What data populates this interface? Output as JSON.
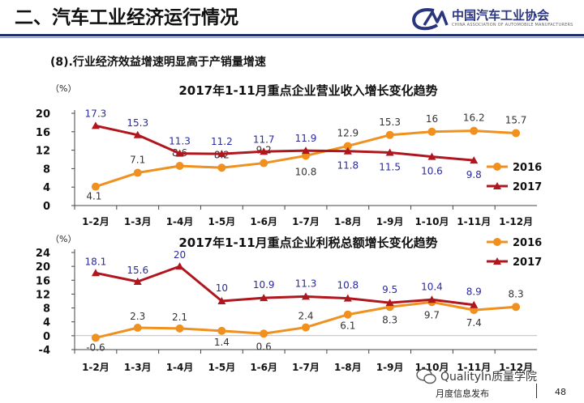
{
  "header": {
    "title": "二、汽车工业经济运行情况",
    "org_name": "中国汽车工业协会",
    "org_name_en": "CHINA ASSOCIATION OF AUTOMOBILE MANUFACTURERS",
    "subtitle": "(8).行业经济效益增速明显高于产销量增速",
    "brand_color": "#2a3580"
  },
  "footer": {
    "label": "月度信息发布",
    "page": "48",
    "watermark": "QualityIn质量学院"
  },
  "chart_data": [
    {
      "type": "line",
      "title": "2017年1-11月重点企业营业收入增长变化趋势",
      "ylabel": "（%）",
      "ylim": [
        0,
        20
      ],
      "yticks": [
        0,
        4,
        8,
        12,
        16,
        20
      ],
      "categories": [
        "1-2月",
        "1-3月",
        "1-4月",
        "1-5月",
        "1-6月",
        "1-7月",
        "1-8月",
        "1-9月",
        "1-10月",
        "1-11月",
        "1-12月"
      ],
      "legend_position": "right",
      "series": [
        {
          "name": "2016",
          "color": "#f0901e",
          "label_color": "#333333",
          "values": [
            4.1,
            7.1,
            8.6,
            8.2,
            9.2,
            10.8,
            12.9,
            15.3,
            16,
            16.2,
            15.7
          ],
          "labels": [
            "4.1",
            "7.1",
            "8.6",
            "8.2",
            "9.2",
            "10.8",
            "12.9",
            "15.3",
            "16",
            "16.2",
            "15.7"
          ]
        },
        {
          "name": "2017",
          "color": "#b0161d",
          "label_color": "#2a2aa0",
          "values": [
            17.3,
            15.3,
            11.3,
            11.2,
            11.7,
            11.9,
            11.8,
            11.5,
            10.6,
            9.8,
            null
          ],
          "labels": [
            "17.3",
            "15.3",
            "11.3",
            "11.2",
            "11.7",
            "11.9",
            "11.8",
            "11.5",
            "10.6",
            "9.8",
            ""
          ]
        }
      ]
    },
    {
      "type": "line",
      "title": "2017年1-11月重点企业利税总额增长变化趋势",
      "ylabel": "（%）",
      "ylim": [
        -4,
        24
      ],
      "yticks": [
        -4,
        0,
        4,
        8,
        12,
        16,
        20,
        24
      ],
      "categories": [
        "1-2月",
        "1-3月",
        "1-4月",
        "1-5月",
        "1-6月",
        "1-7月",
        "1-8月",
        "1-9月",
        "1-10月",
        "1-11月",
        "1-12月"
      ],
      "legend_position": "top-right",
      "series": [
        {
          "name": "2016",
          "color": "#f0901e",
          "label_color": "#333333",
          "values": [
            -0.6,
            2.3,
            2.1,
            1.4,
            0.6,
            2.4,
            6.1,
            8.3,
            9.7,
            7.4,
            8.3
          ],
          "labels": [
            "-0.6",
            "2.3",
            "2.1",
            "1.4",
            "0.6",
            "2.4",
            "6.1",
            "8.3",
            "9.7",
            "7.4",
            "8.3"
          ]
        },
        {
          "name": "2017",
          "color": "#b0161d",
          "label_color": "#2a2aa0",
          "values": [
            18.1,
            15.6,
            20,
            10,
            10.9,
            11.3,
            10.8,
            9.5,
            10.4,
            8.9,
            null
          ],
          "labels": [
            "18.1",
            "15.6",
            "20",
            "10",
            "10.9",
            "11.3",
            "10.8",
            "9.5",
            "10.4",
            "8.9",
            ""
          ]
        }
      ]
    }
  ]
}
